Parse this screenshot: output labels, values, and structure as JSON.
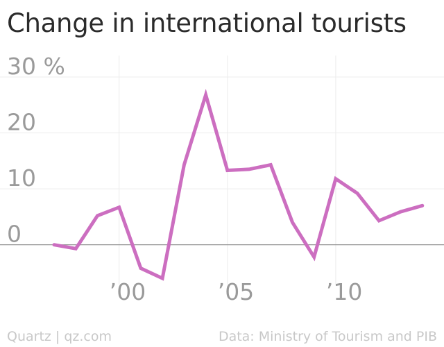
{
  "title": "Change in international tourists",
  "footer": {
    "left": "Quartz | qz.com",
    "right": "Data: Ministry of Tourism and PIB"
  },
  "colors": {
    "series": "#cc6ec0",
    "grid": "#ececec",
    "zero_line": "#8a8a8a",
    "tick_text": "#9a9a9a"
  },
  "chart_data": {
    "type": "line",
    "title": "Change in international tourists",
    "xlabel": "",
    "ylabel": "",
    "x": [
      1997,
      1998,
      1999,
      2000,
      2001,
      2002,
      2003,
      2004,
      2005,
      2006,
      2007,
      2008,
      2009,
      2010,
      2011,
      2012,
      2013,
      2014
    ],
    "series": [
      {
        "values": [
          0,
          -0.7,
          5.2,
          6.7,
          -4.2,
          -6.0,
          14.3,
          26.8,
          13.3,
          13.5,
          14.3,
          4.0,
          -2.2,
          11.8,
          9.2,
          4.3,
          5.9,
          7.0
        ]
      }
    ],
    "ylim": [
      -6,
      30
    ],
    "xlim": [
      1994.5,
      2015
    ],
    "y_ticks": [
      {
        "value": 30,
        "label": "30 %"
      },
      {
        "value": 20,
        "label": "20"
      },
      {
        "value": 10,
        "label": "10"
      },
      {
        "value": 0,
        "label": "0"
      }
    ],
    "x_ticks": [
      {
        "value": 2000,
        "label": "’00"
      },
      {
        "value": 2005,
        "label": "’05"
      },
      {
        "value": 2010,
        "label": "’10"
      }
    ],
    "grid": true,
    "legend": "none"
  }
}
